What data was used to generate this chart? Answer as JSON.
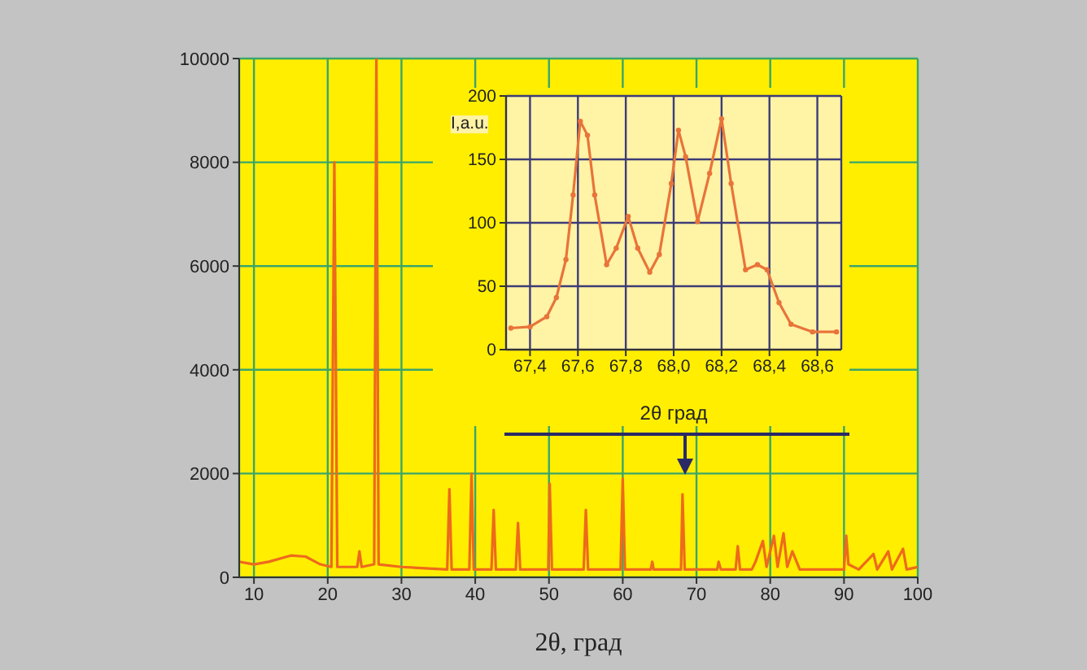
{
  "chart_data": [
    {
      "type": "line",
      "xlabel": "2θ, град",
      "xlim": [
        8,
        100
      ],
      "xticks": [
        10,
        20,
        30,
        40,
        50,
        60,
        70,
        80,
        90,
        100
      ],
      "ylim": [
        0,
        10000
      ],
      "yticks": [
        0,
        2000,
        4000,
        6000,
        8000,
        10000
      ],
      "grid": true,
      "x": [
        8,
        10,
        12,
        15,
        17,
        19,
        20.5,
        20.9,
        21.3,
        24,
        24.3,
        24.6,
        26.3,
        26.6,
        26.9,
        30,
        36.2,
        36.5,
        36.8,
        39.2,
        39.5,
        39.8,
        42.2,
        42.5,
        42.8,
        45.5,
        45.8,
        46.1,
        49.9,
        50.1,
        50.4,
        54.7,
        55,
        55.3,
        59.7,
        60,
        60.3,
        63.8,
        64,
        64.2,
        67.9,
        68.1,
        68.4,
        72.8,
        73,
        73.3,
        75.3,
        75.6,
        75.9,
        77.5,
        78,
        79,
        79.5,
        80.5,
        81,
        81.8,
        82.3,
        83,
        84,
        90,
        90.3,
        90.6,
        92,
        94,
        94.5,
        96,
        96.5,
        98,
        98.5,
        100
      ],
      "series": [
        {
          "color": "#ee6a1c",
          "values": [
            300,
            250,
            300,
            420,
            400,
            250,
            200,
            8000,
            200,
            200,
            500,
            200,
            250,
            10000,
            250,
            200,
            150,
            1700,
            150,
            150,
            2000,
            150,
            150,
            1300,
            150,
            150,
            1050,
            150,
            150,
            1800,
            150,
            150,
            1300,
            150,
            150,
            1900,
            150,
            150,
            300,
            150,
            150,
            1600,
            150,
            150,
            300,
            150,
            150,
            600,
            150,
            150,
            300,
            700,
            200,
            800,
            200,
            850,
            200,
            500,
            150,
            150,
            800,
            250,
            150,
            450,
            150,
            500,
            150,
            550,
            150,
            200
          ]
        }
      ]
    },
    {
      "type": "line",
      "xlabel": "2θ град",
      "ylabel": "I,a.u.",
      "xlim": [
        67.3,
        68.7
      ],
      "xticks": [
        {
          "value": 67.4,
          "label": "67,4"
        },
        {
          "value": 67.6,
          "label": "67,6"
        },
        {
          "value": 67.8,
          "label": "67,8"
        },
        {
          "value": 68.0,
          "label": "68,0"
        },
        {
          "value": 68.2,
          "label": "68,2"
        },
        {
          "value": 68.4,
          "label": "68,4"
        },
        {
          "value": 68.6,
          "label": "68,6"
        }
      ],
      "ylim": [
        0,
        200
      ],
      "yticks": [
        0,
        50,
        100,
        150,
        200
      ],
      "grid": true,
      "marker": "circle",
      "x": [
        67.32,
        67.4,
        67.47,
        67.51,
        67.55,
        67.58,
        67.61,
        67.64,
        67.67,
        67.72,
        67.76,
        67.81,
        67.85,
        67.9,
        67.94,
        67.99,
        68.02,
        68.05,
        68.1,
        68.15,
        68.2,
        68.24,
        68.3,
        68.35,
        68.39,
        68.44,
        68.49,
        68.58,
        68.68
      ],
      "series": [
        {
          "color": "#e8743a",
          "values": [
            17,
            18,
            26,
            41,
            71,
            122,
            180,
            169,
            122,
            67,
            80,
            105,
            80,
            61,
            75,
            131,
            173,
            152,
            101,
            139,
            182,
            131,
            63,
            67,
            63,
            37,
            20,
            14,
            14
          ]
        }
      ]
    }
  ]
}
